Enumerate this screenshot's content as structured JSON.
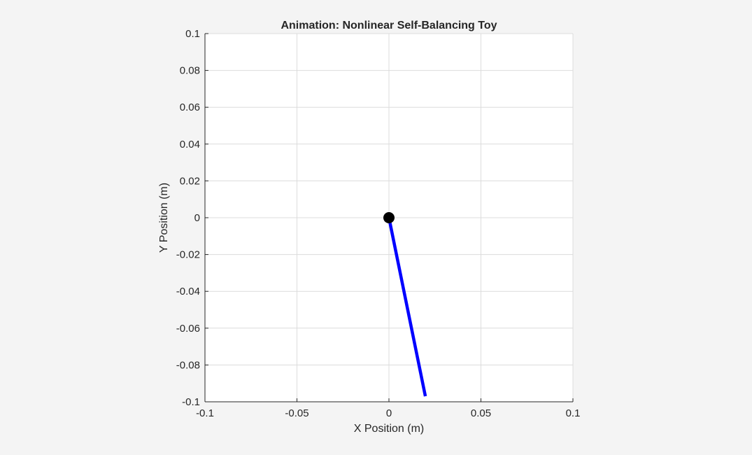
{
  "chart_data": {
    "type": "line",
    "title": "Animation: Nonlinear Self-Balancing Toy",
    "xlabel": "X Position (m)",
    "ylabel": "Y Position (m)",
    "xlim": [
      -0.1,
      0.1
    ],
    "ylim": [
      -0.1,
      0.1
    ],
    "xticks": [
      -0.1,
      -0.05,
      0,
      0.05,
      0.1
    ],
    "yticks": [
      0.1,
      0.08,
      0.06,
      0.04,
      0.02,
      0,
      -0.02,
      -0.04,
      -0.06,
      -0.08,
      -0.1
    ],
    "xtick_labels": [
      "-0.1",
      "-0.05",
      "0",
      "0.05",
      "0.1"
    ],
    "ytick_labels": [
      "0.1",
      "0.08",
      "0.06",
      "0.04",
      "0.02",
      "0",
      "-0.02",
      "-0.04",
      "-0.06",
      "-0.08",
      "-0.1"
    ],
    "grid": true,
    "series": [
      {
        "marker": "line",
        "color": "#0000ff",
        "x": [
          0,
          0.0198
        ],
        "y": [
          0,
          -0.097
        ]
      },
      {
        "marker": "circle",
        "color": "#000000",
        "x": [
          0
        ],
        "y": [
          0
        ]
      }
    ]
  },
  "colors": {
    "background": "#f4f4f4",
    "axes_background": "#ffffff",
    "grid": "#dcdcdc",
    "axis": "#262626",
    "rod": "#0000ff",
    "pivot": "#000000"
  }
}
